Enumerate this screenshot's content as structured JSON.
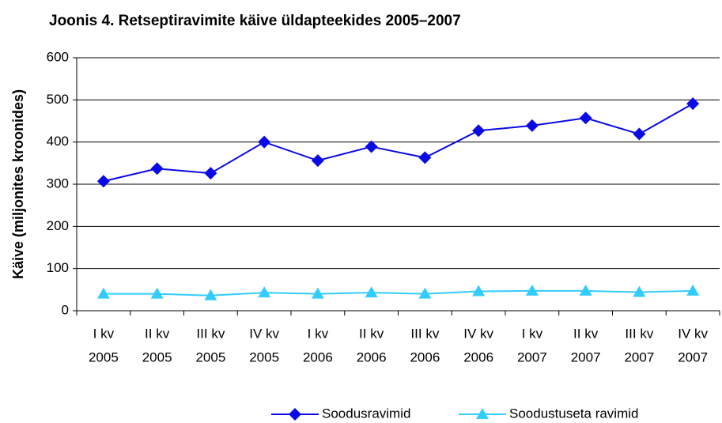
{
  "chart_data": {
    "type": "line",
    "title": "Joonis 4. Retseptiravimite käive üldapteekides 2005–2007",
    "y_label": "Käive (miljonites kroonides)",
    "categories": [
      [
        "I kv",
        "2005"
      ],
      [
        "II kv",
        "2005"
      ],
      [
        "III kv",
        "2005"
      ],
      [
        "IV kv",
        "2005"
      ],
      [
        "I kv",
        "2006"
      ],
      [
        "II kv",
        "2006"
      ],
      [
        "III kv",
        "2006"
      ],
      [
        "IV kv",
        "2006"
      ],
      [
        "I kv",
        "2007"
      ],
      [
        "II kv",
        "2007"
      ],
      [
        "III kv",
        "2007"
      ],
      [
        "IV kv",
        "2007"
      ]
    ],
    "series": [
      {
        "name": "Soodusravimid",
        "color": "#0a0ae6",
        "marker": "diamond",
        "values": [
          307,
          337,
          326,
          400,
          356,
          389,
          363,
          427,
          439,
          457,
          419,
          491
        ]
      },
      {
        "name": "Soodustuseta ravimid",
        "color": "#33ccff",
        "marker": "triangle",
        "values": [
          40,
          40,
          36,
          43,
          40,
          43,
          40,
          46,
          47,
          47,
          44,
          47
        ]
      }
    ],
    "ylim": [
      0,
      600
    ],
    "yticks": [
      0,
      100,
      200,
      300,
      400,
      500,
      600
    ],
    "grid": true,
    "legend": "bottom-right"
  }
}
